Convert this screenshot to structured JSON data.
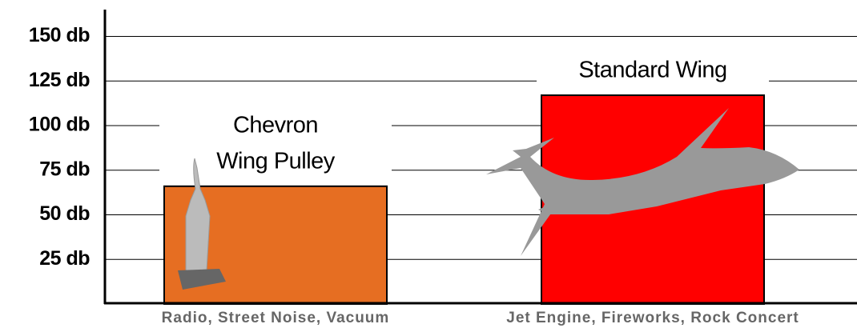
{
  "chart_data": {
    "type": "bar",
    "categories": [
      "Radio, Street Noise, Vacuum",
      "Jet Engine, Fireworks, Rock Concert"
    ],
    "values": [
      66,
      117
    ],
    "colors": [
      "#e66e22",
      "#ff0000"
    ],
    "bar_labels": [
      [
        "Chevron",
        "Wing Pulley"
      ],
      [
        "Standard Wing"
      ]
    ],
    "ylim": [
      0,
      165
    ],
    "yticks": [
      {
        "value": 25,
        "label": "25 db"
      },
      {
        "value": 50,
        "label": "50 db"
      },
      {
        "value": 75,
        "label": "75 db"
      },
      {
        "value": 100,
        "label": "100 db"
      },
      {
        "value": 125,
        "label": "125 db"
      },
      {
        "value": 150,
        "label": "150 db"
      }
    ],
    "grid": true
  }
}
